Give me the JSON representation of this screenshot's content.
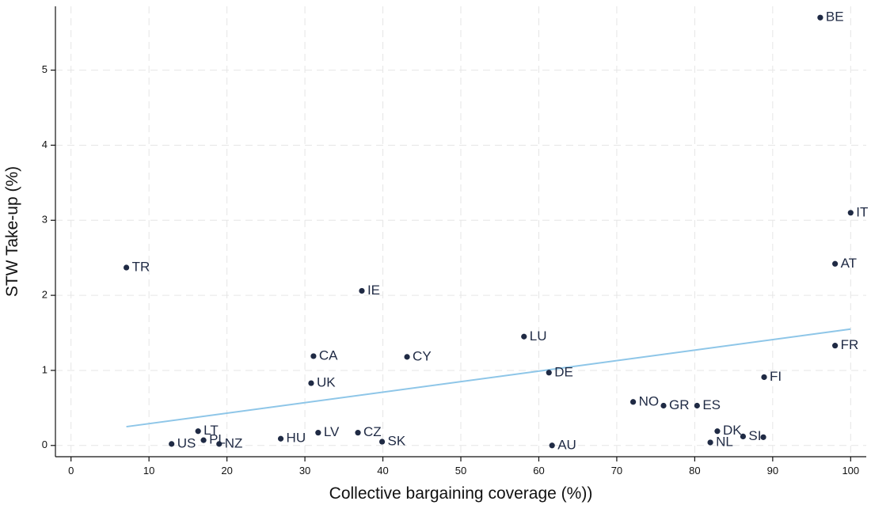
{
  "chart_data": {
    "type": "scatter",
    "title": "",
    "xlabel": "Collective bargaining coverage (%))",
    "ylabel": "STW Take-up (%)",
    "xlim": [
      -2,
      102
    ],
    "ylim": [
      -0.15,
      5.85
    ],
    "xticks": [
      0,
      10,
      20,
      30,
      40,
      50,
      60,
      70,
      80,
      90,
      100
    ],
    "yticks": [
      0,
      1,
      2,
      3,
      4,
      5
    ],
    "grid": true,
    "colors": {
      "points": "#1f2a44",
      "fit_line": "#8ec6e8"
    },
    "points": [
      {
        "label": "BE",
        "x": 96.1,
        "y": 5.7
      },
      {
        "label": "IT",
        "x": 100,
        "y": 3.1
      },
      {
        "label": "AT",
        "x": 98,
        "y": 2.42
      },
      {
        "label": "TR",
        "x": 7.1,
        "y": 2.37
      },
      {
        "label": "IE",
        "x": 37.3,
        "y": 2.06
      },
      {
        "label": "LU",
        "x": 58.1,
        "y": 1.45
      },
      {
        "label": "FR",
        "x": 98,
        "y": 1.33
      },
      {
        "label": "CA",
        "x": 31.1,
        "y": 1.19
      },
      {
        "label": "CY",
        "x": 43.1,
        "y": 1.18
      },
      {
        "label": "DE",
        "x": 61.3,
        "y": 0.97
      },
      {
        "label": "FI",
        "x": 88.9,
        "y": 0.91
      },
      {
        "label": "UK",
        "x": 30.8,
        "y": 0.83
      },
      {
        "label": "NO",
        "x": 72.1,
        "y": 0.58
      },
      {
        "label": "GR",
        "x": 76,
        "y": 0.53
      },
      {
        "label": "ES",
        "x": 80.3,
        "y": 0.53
      },
      {
        "label": "DK",
        "x": 82.9,
        "y": 0.19
      },
      {
        "label": "SI",
        "x": 86.2,
        "y": 0.12
      },
      {
        "label": "",
        "x": 88.8,
        "y": 0.11
      },
      {
        "label": "NL",
        "x": 82,
        "y": 0.04
      },
      {
        "label": "LT",
        "x": 16.3,
        "y": 0.19
      },
      {
        "label": "PL",
        "x": 17,
        "y": 0.07
      },
      {
        "label": "NZ",
        "x": 19,
        "y": 0.02
      },
      {
        "label": "US",
        "x": 12.9,
        "y": 0.02
      },
      {
        "label": "HU",
        "x": 26.9,
        "y": 0.09
      },
      {
        "label": "LV",
        "x": 31.7,
        "y": 0.17
      },
      {
        "label": "CZ",
        "x": 36.8,
        "y": 0.17
      },
      {
        "label": "SK",
        "x": 39.9,
        "y": 0.05
      },
      {
        "label": "AU",
        "x": 61.7,
        "y": 0.0
      }
    ],
    "fit_line": {
      "x": [
        7.1,
        100
      ],
      "y": [
        0.25,
        1.55
      ]
    }
  }
}
